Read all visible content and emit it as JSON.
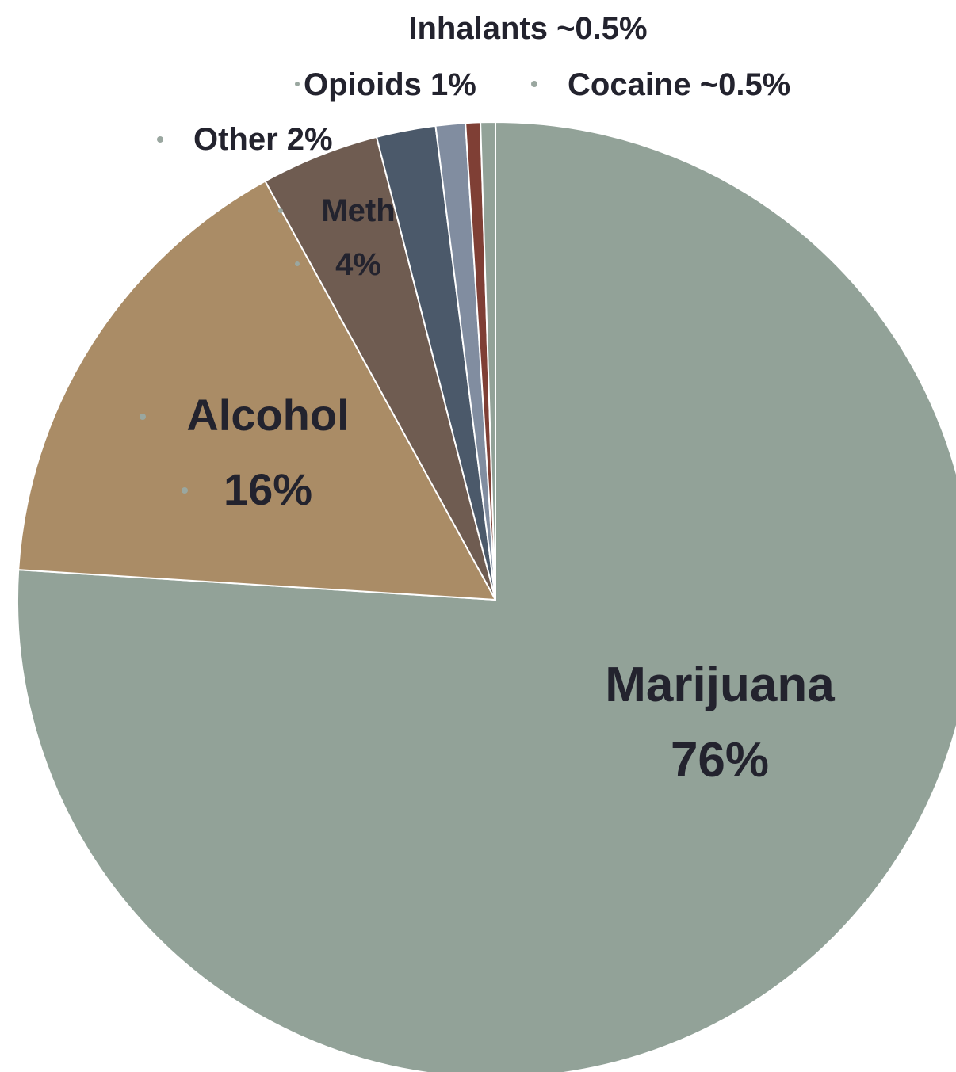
{
  "chart_data": {
    "type": "pie",
    "title": "",
    "slices": [
      {
        "name": "Marijuana",
        "value": 76,
        "label": [
          "Marijuana",
          "76%"
        ],
        "color": "#92a298"
      },
      {
        "name": "Alcohol",
        "value": 16,
        "label": [
          "Alcohol",
          "16%"
        ],
        "color": "#aa8c66"
      },
      {
        "name": "Meth",
        "value": 4,
        "label": [
          "Meth",
          "4%"
        ],
        "color": "#6f5c51"
      },
      {
        "name": "Other",
        "value": 2,
        "label": [
          "Other 2%"
        ],
        "color": "#4b596a"
      },
      {
        "name": "Opioids",
        "value": 1,
        "label": [
          "Opioids 1%"
        ],
        "color": "#818da0"
      },
      {
        "name": "Cocaine",
        "value": 0.5,
        "label": [
          "Cocaine ~0.5%"
        ],
        "color": "#7f3f35"
      },
      {
        "name": "Inhalants",
        "value": 0.5,
        "label": [
          "Inhalants ~0.5%"
        ],
        "color": "#92a298"
      }
    ],
    "start_angle": "12 o'clock",
    "direction": "clockwise",
    "slice_border_color": "#ffffff",
    "label_text_color": "#23232e",
    "bullet_color": "#9aa7a0",
    "legend": "none"
  }
}
